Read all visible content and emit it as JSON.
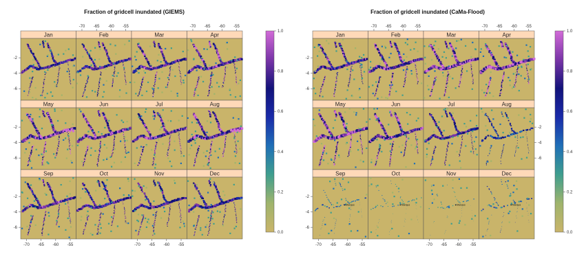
{
  "chart_data": [
    {
      "type": "heatmap",
      "title": "Fraction of gridcell inundated (GIEMS)",
      "panels": [
        "Jan",
        "Feb",
        "Mar",
        "Apr",
        "May",
        "Jun",
        "Jul",
        "Aug",
        "Sep",
        "Oct",
        "Nov",
        "Dec"
      ],
      "x_ticks": [
        "-70",
        "-65",
        "-60",
        "-55"
      ],
      "y_ticks": [
        "-2",
        "-4",
        "-6"
      ],
      "xlim": [
        -72,
        -53
      ],
      "ylim": [
        -7.5,
        0.5
      ],
      "colorbar": {
        "ticks": [
          "0.0",
          "0.2",
          "0.4",
          "0.6",
          "0.8",
          "1.0"
        ],
        "range": [
          0,
          1
        ],
        "colors": [
          "#c9b46a",
          "#9fb46c",
          "#3f9e8e",
          "#1f6fb7",
          "#1a2ba9",
          "#12127a",
          "#7a35a8",
          "#d26bd8"
        ]
      },
      "seasonal_intensity": [
        0.7,
        0.72,
        0.78,
        0.82,
        0.9,
        0.85,
        0.8,
        0.85,
        0.75,
        0.72,
        0.7,
        0.7
      ],
      "peak_months_high_values": [
        "May",
        "Aug"
      ]
    },
    {
      "type": "heatmap",
      "title": "Fraction of gridcell inundated (CaMa-Flood)",
      "panels": [
        "Jan",
        "Feb",
        "Mar",
        "Apr",
        "May",
        "Jun",
        "Jul",
        "Aug",
        "Sep",
        "Oct",
        "Nov",
        "Dec"
      ],
      "x_ticks": [
        "-70",
        "-65",
        "-60",
        "-55"
      ],
      "y_ticks": [
        "-2",
        "-4",
        "-6"
      ],
      "xlim": [
        -72,
        -53
      ],
      "ylim": [
        -7.5,
        0.5
      ],
      "colorbar": {
        "ticks": [
          "0.0",
          "0.2",
          "0.4",
          "0.6",
          "0.8",
          "1.0"
        ],
        "range": [
          0,
          1
        ],
        "colors": [
          "#c9b46a",
          "#9fb46c",
          "#3f9e8e",
          "#1f6fb7",
          "#1a2ba9",
          "#12127a",
          "#7a35a8",
          "#d26bd8"
        ]
      },
      "seasonal_intensity": [
        0.75,
        0.85,
        0.92,
        0.95,
        0.95,
        0.85,
        0.7,
        0.45,
        0.15,
        0.08,
        0.05,
        0.22
      ],
      "annotation": "Manaus"
    }
  ]
}
